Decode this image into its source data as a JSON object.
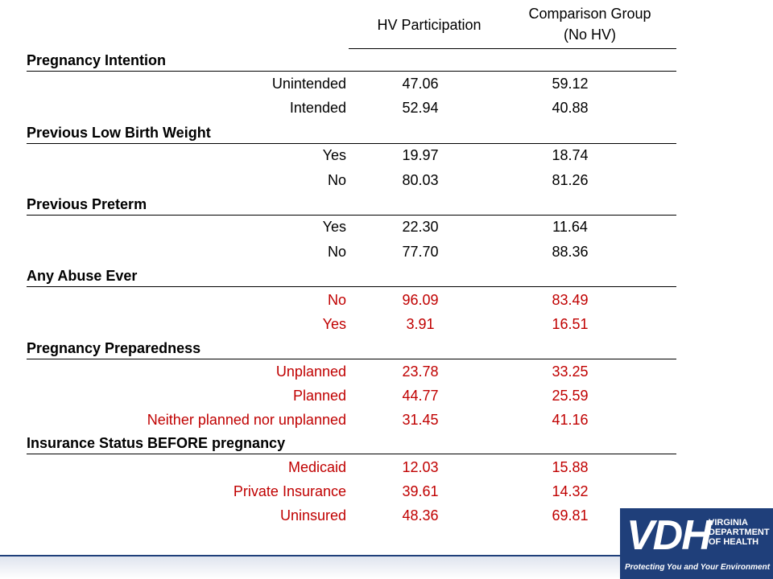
{
  "header": {
    "col1": "HV Participation",
    "col2_line1": "Comparison Group",
    "col2_line2": "(No HV)"
  },
  "sections": [
    {
      "title": "Pregnancy Intention",
      "rows": [
        {
          "label": "Unintended",
          "hv": "47.06",
          "comp": "59.12"
        },
        {
          "label": "Intended",
          "hv": "52.94",
          "comp": "40.88"
        }
      ]
    },
    {
      "title": "Previous Low Birth Weight",
      "rows": [
        {
          "label": "Yes",
          "hv": "19.97",
          "comp": "18.74"
        },
        {
          "label": "No",
          "hv": "80.03",
          "comp": "81.26"
        }
      ]
    },
    {
      "title": "Previous Preterm",
      "rows": [
        {
          "label": "Yes",
          "hv": "22.30",
          "comp": "11.64"
        },
        {
          "label": "No",
          "hv": "77.70",
          "comp": "88.36"
        }
      ]
    },
    {
      "title": "Any Abuse Ever",
      "rows": [
        {
          "label": "No",
          "hv": "96.09",
          "comp": "83.49"
        },
        {
          "label": "Yes",
          "hv": "3.91",
          "comp": "16.51"
        }
      ]
    },
    {
      "title": "Pregnancy Preparedness",
      "rows": [
        {
          "label": "Unplanned",
          "hv": "23.78",
          "comp": "33.25"
        },
        {
          "label": "Planned",
          "hv": "44.77",
          "comp": "25.59"
        },
        {
          "label": "Neither planned nor unplanned",
          "hv": "31.45",
          "comp": "41.16"
        }
      ]
    },
    {
      "title": "Insurance Status BEFORE pregnancy",
      "rows": [
        {
          "label": "Medicaid",
          "hv": "12.03",
          "comp": "15.88"
        },
        {
          "label": "Private Insurance",
          "hv": "39.61",
          "comp": "14.32"
        },
        {
          "label": "Uninsured",
          "hv": "48.36",
          "comp": "69.81"
        }
      ]
    }
  ],
  "logo": {
    "mark": "VDH",
    "name": "VIRGINIA\nDEPARTMENT\nOF HEALTH",
    "tagline": "Protecting You and Your Environment"
  },
  "colors": {
    "highlight_text": "#c00000",
    "logo_background": "#1f3f7a"
  }
}
